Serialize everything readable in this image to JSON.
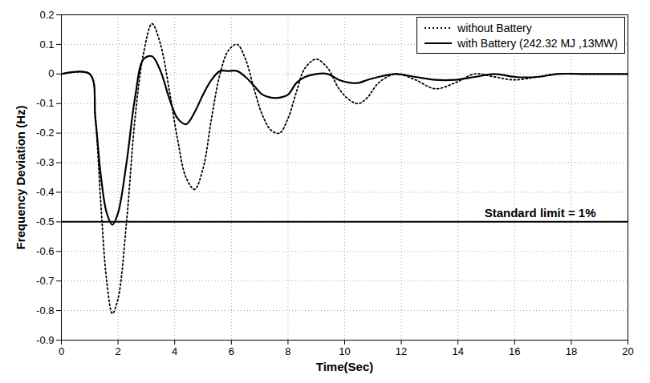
{
  "chart_data": {
    "type": "line",
    "x_label": "Time(Sec)",
    "y_label": "Frequency Deviation (Hz)",
    "x": [
      0,
      1,
      1.2,
      1.4,
      1.6,
      1.8,
      2.0,
      2.3,
      2.6,
      2.9,
      3.2,
      3.5,
      3.8,
      4.1,
      4.4,
      4.7,
      5.0,
      5.3,
      5.6,
      5.9,
      6.2,
      6.5,
      6.8,
      7.1,
      7.4,
      7.7,
      8.0,
      8.3,
      8.6,
      9.0,
      9.4,
      9.8,
      10.2,
      10.5,
      10.8,
      11.2,
      11.8,
      12.5,
      13.2,
      13.9,
      14.6,
      15.3,
      16,
      16.8,
      17.5,
      18.5,
      20
    ],
    "series": [
      {
        "name": "without Battery",
        "color": "#000000",
        "line_style": "dotted",
        "values": [
          0,
          0,
          -0.15,
          -0.45,
          -0.7,
          -0.81,
          -0.76,
          -0.5,
          -0.15,
          0.07,
          0.17,
          0.1,
          -0.05,
          -0.22,
          -0.35,
          -0.39,
          -0.32,
          -0.15,
          0,
          0.08,
          0.1,
          0.05,
          -0.05,
          -0.14,
          -0.19,
          -0.2,
          -0.15,
          -0.06,
          0.02,
          0.05,
          0.02,
          -0.05,
          -0.09,
          -0.1,
          -0.08,
          -0.03,
          0,
          -0.02,
          -0.05,
          -0.03,
          0,
          -0.01,
          -0.02,
          -0.01,
          0,
          0,
          0
        ]
      },
      {
        "name": "with Battery (242.32 MJ ,13MW)",
        "color": "#000000",
        "line_style": "solid",
        "values": [
          0,
          0,
          -0.15,
          -0.35,
          -0.47,
          -0.51,
          -0.47,
          -0.3,
          -0.08,
          0.05,
          0.06,
          0.01,
          -0.08,
          -0.15,
          -0.17,
          -0.13,
          -0.07,
          -0.02,
          0.01,
          0.01,
          0.01,
          -0.01,
          -0.04,
          -0.07,
          -0.08,
          -0.08,
          -0.07,
          -0.03,
          -0.01,
          0,
          0,
          -0.02,
          -0.03,
          -0.03,
          -0.02,
          -0.01,
          0,
          -0.01,
          -0.02,
          -0.02,
          -0.01,
          0,
          -0.01,
          -0.01,
          0,
          0,
          0
        ]
      }
    ],
    "reference_line": {
      "y": -0.5,
      "label": "Standard limit = 1%"
    },
    "xlim": [
      0,
      20
    ],
    "xticks": [
      0,
      2,
      4,
      6,
      8,
      10,
      12,
      14,
      16,
      18,
      20
    ],
    "ylim": [
      -0.9,
      0.2
    ],
    "yticks": [
      -0.9,
      -0.8,
      -0.7,
      -0.6,
      -0.5,
      -0.4,
      -0.3,
      -0.2,
      -0.1,
      0,
      0.1,
      0.2
    ],
    "grid": true,
    "legend": "top-right"
  }
}
